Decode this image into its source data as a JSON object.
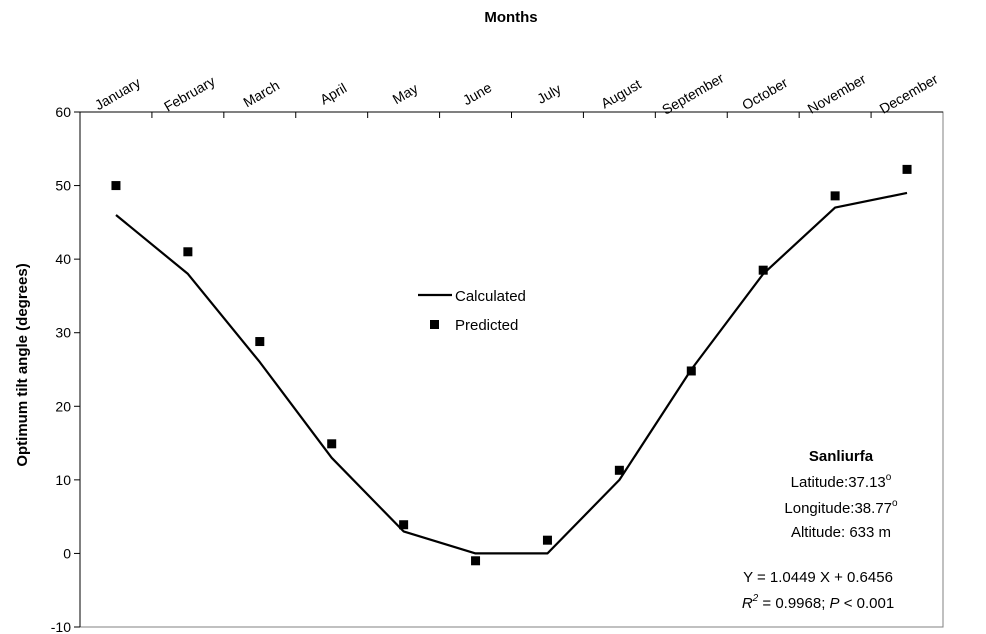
{
  "chart_data": {
    "type": "line",
    "xlabel": "Months",
    "ylabel": "Optimum tilt angle (degrees)",
    "ylim": [
      -10,
      60
    ],
    "yticks": [
      -10,
      0,
      10,
      20,
      30,
      40,
      50,
      60
    ],
    "categories": [
      "January",
      "February",
      "March",
      "April",
      "May",
      "June",
      "July",
      "August",
      "September",
      "October",
      "November",
      "December"
    ],
    "series": [
      {
        "name": "Calculated",
        "style": "line",
        "color": "#000000",
        "values": [
          46,
          38,
          26,
          13,
          3,
          0,
          0,
          10,
          25,
          38,
          47,
          49
        ]
      },
      {
        "name": "Predicted",
        "style": "marker",
        "color": "#000000",
        "values": [
          50,
          41,
          28.8,
          14.9,
          3.9,
          -1,
          1.8,
          11.3,
          24.8,
          38.5,
          48.6,
          52.2
        ]
      }
    ],
    "legend_position": "center",
    "grid": false,
    "annotation": {
      "title": "Sanliurfa",
      "latitude": "Latitude:37.13",
      "longitude": "Longitude:38.77",
      "degree_mark": "o",
      "altitude": "Altitude: 633 m",
      "equation": "Y = 1.0449 X + 0.6456",
      "r2_symbol": "R",
      "r2_exp": "2",
      "r2_value": " = 0.9968; ",
      "p_symbol": "P",
      "p_value": " < 0.001"
    }
  }
}
